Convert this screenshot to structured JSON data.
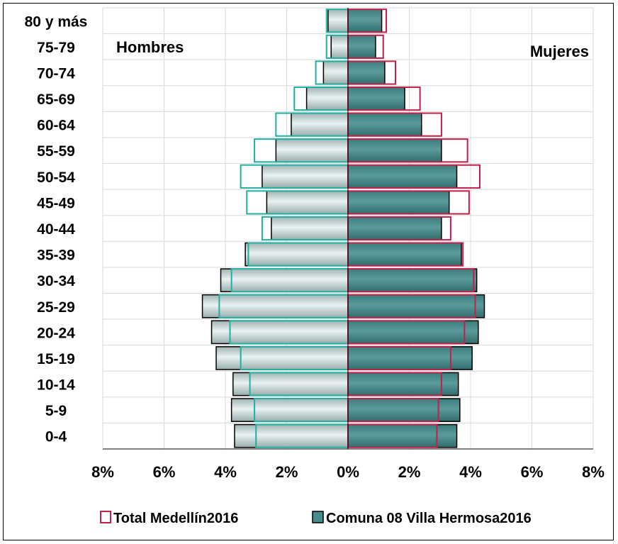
{
  "chart_data": {
    "type": "bar",
    "orientation": "horizontal-population-pyramid",
    "categories": [
      "0-4",
      "5-9",
      "10-14",
      "15-19",
      "20-24",
      "25-29",
      "30-34",
      "35-39",
      "40-44",
      "45-49",
      "50-54",
      "55-59",
      "60-64",
      "65-69",
      "70-74",
      "75-79",
      "80 y más"
    ],
    "xlim": [
      -8,
      8
    ],
    "x_ticks": [
      "8%",
      "6%",
      "4%",
      "2%",
      "0%",
      "2%",
      "4%",
      "6%",
      "8%"
    ],
    "grid": true,
    "annotations": {
      "left": "Hombres",
      "right": "Mujeres"
    },
    "legend_position": "bottom",
    "series": [
      {
        "name": "Total Medellín2016",
        "style": "outline",
        "outline_male": "#20b0a0",
        "outline_female": "#c0204a",
        "male": [
          3.0,
          3.05,
          3.2,
          3.5,
          3.85,
          4.2,
          3.8,
          3.25,
          2.8,
          3.3,
          3.5,
          3.05,
          2.35,
          1.75,
          1.05,
          0.7,
          0.7
        ],
        "female": [
          2.9,
          2.95,
          3.05,
          3.35,
          3.8,
          4.15,
          4.1,
          3.75,
          3.35,
          3.95,
          4.3,
          3.9,
          3.05,
          2.35,
          1.55,
          1.15,
          1.25
        ]
      },
      {
        "name": "Comuna 08 Villa Hermosa2016",
        "style": "filled",
        "fill_male": "#c8d8d8",
        "fill_female": "#4a8c8c",
        "male": [
          3.7,
          3.8,
          3.75,
          4.3,
          4.45,
          4.75,
          4.15,
          3.35,
          2.5,
          2.65,
          2.8,
          2.35,
          1.85,
          1.35,
          0.8,
          0.55,
          0.65
        ],
        "female": [
          3.55,
          3.65,
          3.6,
          4.05,
          4.25,
          4.45,
          4.2,
          3.7,
          3.05,
          3.3,
          3.55,
          3.05,
          2.4,
          1.85,
          1.2,
          0.9,
          1.1
        ]
      }
    ]
  }
}
